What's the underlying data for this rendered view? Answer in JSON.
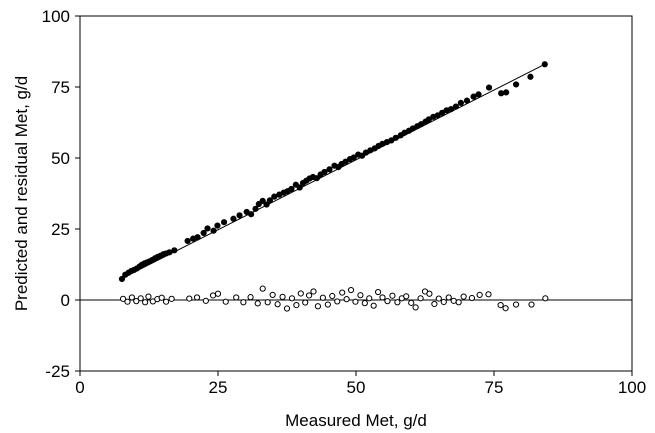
{
  "chart_data": {
    "type": "scatter",
    "title": "",
    "xlabel": "Measured Met, g/d",
    "ylabel": "Predicted and residual Met, g/d",
    "xlim": [
      0,
      100
    ],
    "ylim": [
      -25,
      100
    ],
    "xticks": [
      "0",
      "25",
      "50",
      "75",
      "100"
    ],
    "yticks": [
      "-25",
      "0",
      "25",
      "50",
      "75",
      "100"
    ],
    "grid": false,
    "legend": "none",
    "reference_lines": [
      {
        "name": "regression-line",
        "points": [
          [
            8.2,
            8.2
          ],
          [
            84.0,
            82.8
          ]
        ]
      },
      {
        "name": "zero-line",
        "points": [
          [
            0,
            0
          ],
          [
            100,
            0
          ]
        ]
      }
    ],
    "series": [
      {
        "marker": "filled-circle",
        "color": "#000000",
        "x": [
          7.6,
          8.2,
          8.8,
          9.3,
          9.8,
          10.3,
          10.8,
          11.2,
          11.7,
          12.1,
          12.6,
          13.1,
          13.6,
          14.1,
          14.6,
          15.1,
          15.6,
          16.2,
          17.1,
          19.5,
          20.5,
          21.3,
          22.4,
          23.1,
          24.2,
          24.9,
          26.1,
          27.8,
          28.9,
          30.2,
          31.0,
          31.8,
          32.4,
          33.1,
          33.8,
          34.4,
          35.2,
          36.1,
          36.9,
          37.6,
          38.3,
          39.1,
          39.8,
          40.4,
          41.0,
          41.6,
          42.2,
          42.9,
          43.6,
          44.3,
          45.2,
          46.1,
          46.8,
          47.4,
          48.1,
          48.9,
          49.6,
          50.4,
          51.1,
          51.8,
          52.6,
          53.4,
          54.1,
          54.8,
          55.6,
          56.4,
          57.2,
          58.1,
          58.8,
          59.6,
          60.3,
          61.1,
          61.8,
          62.6,
          63.2,
          64.0,
          64.8,
          65.6,
          66.4,
          67.2,
          68.1,
          69.0,
          70.1,
          71.3,
          72.2,
          74.1,
          76.3,
          77.2,
          79.0,
          81.6,
          84.2
        ],
        "y": [
          7.4,
          8.9,
          9.6,
          10.2,
          10.6,
          11.1,
          11.8,
          12.4,
          12.9,
          13.2,
          13.6,
          14.1,
          14.7,
          15.2,
          15.6,
          16.1,
          16.4,
          16.8,
          17.5,
          20.8,
          21.6,
          22.1,
          23.6,
          25.2,
          24.4,
          26.2,
          27.4,
          28.6,
          29.8,
          31.0,
          30.2,
          32.1,
          33.8,
          34.9,
          33.6,
          35.1,
          36.4,
          37.1,
          37.8,
          38.3,
          39.1,
          40.6,
          39.6,
          41.2,
          42.0,
          42.8,
          43.3,
          42.9,
          44.2,
          45.1,
          46.0,
          47.3,
          46.8,
          47.9,
          48.7,
          49.6,
          50.2,
          51.2,
          50.8,
          51.9,
          52.7,
          53.4,
          54.3,
          55.0,
          55.6,
          56.2,
          57.1,
          58.0,
          58.9,
          59.6,
          60.4,
          61.2,
          61.9,
          62.8,
          63.6,
          64.5,
          65.0,
          65.9,
          66.8,
          67.2,
          68.1,
          69.4,
          70.2,
          71.6,
          72.4,
          74.8,
          72.8,
          73.1,
          75.9,
          78.6,
          83.0
        ]
      },
      {
        "marker": "open-circle",
        "color": "#000000",
        "x": [
          7.8,
          8.6,
          9.4,
          10.2,
          11.0,
          11.8,
          12.4,
          13.2,
          14.0,
          14.8,
          15.6,
          16.6,
          19.8,
          21.2,
          22.8,
          24.1,
          25.0,
          26.4,
          28.3,
          29.6,
          30.9,
          32.2,
          33.1,
          34.0,
          34.9,
          35.8,
          36.7,
          37.5,
          38.4,
          39.2,
          40.0,
          40.8,
          41.5,
          42.3,
          43.1,
          44.0,
          44.9,
          45.7,
          46.6,
          47.5,
          48.3,
          49.1,
          49.9,
          50.8,
          51.6,
          52.4,
          53.2,
          54.0,
          54.8,
          55.7,
          56.6,
          57.5,
          58.3,
          59.1,
          60.0,
          60.8,
          61.7,
          62.5,
          63.3,
          64.2,
          65.0,
          65.9,
          66.8,
          67.7,
          68.6,
          69.5,
          71.0,
          72.4,
          74.0,
          76.2,
          77.1,
          79.0,
          81.8,
          84.3
        ],
        "y": [
          0.4,
          -0.6,
          0.9,
          -0.4,
          0.6,
          -0.8,
          1.2,
          -0.5,
          0.3,
          0.8,
          -0.6,
          0.4,
          0.5,
          0.9,
          -0.3,
          1.6,
          2.2,
          -0.6,
          0.9,
          -0.8,
          1.0,
          -1.2,
          4.0,
          -0.8,
          1.8,
          -1.5,
          1.1,
          -3.0,
          0.6,
          -1.8,
          2.3,
          -0.9,
          1.6,
          3.0,
          -2.2,
          0.8,
          -1.6,
          1.4,
          -0.5,
          2.6,
          0.3,
          3.5,
          -0.6,
          1.7,
          -1.1,
          0.6,
          -2.0,
          2.8,
          0.9,
          -0.4,
          1.5,
          -0.8,
          0.6,
          1.3,
          -1.0,
          -2.6,
          0.6,
          3.0,
          2.2,
          -1.4,
          0.5,
          -0.7,
          0.9,
          -0.3,
          -0.8,
          1.2,
          0.7,
          1.8,
          2.0,
          -1.8,
          -2.9,
          -1.6,
          -1.6,
          0.6
        ]
      }
    ]
  }
}
